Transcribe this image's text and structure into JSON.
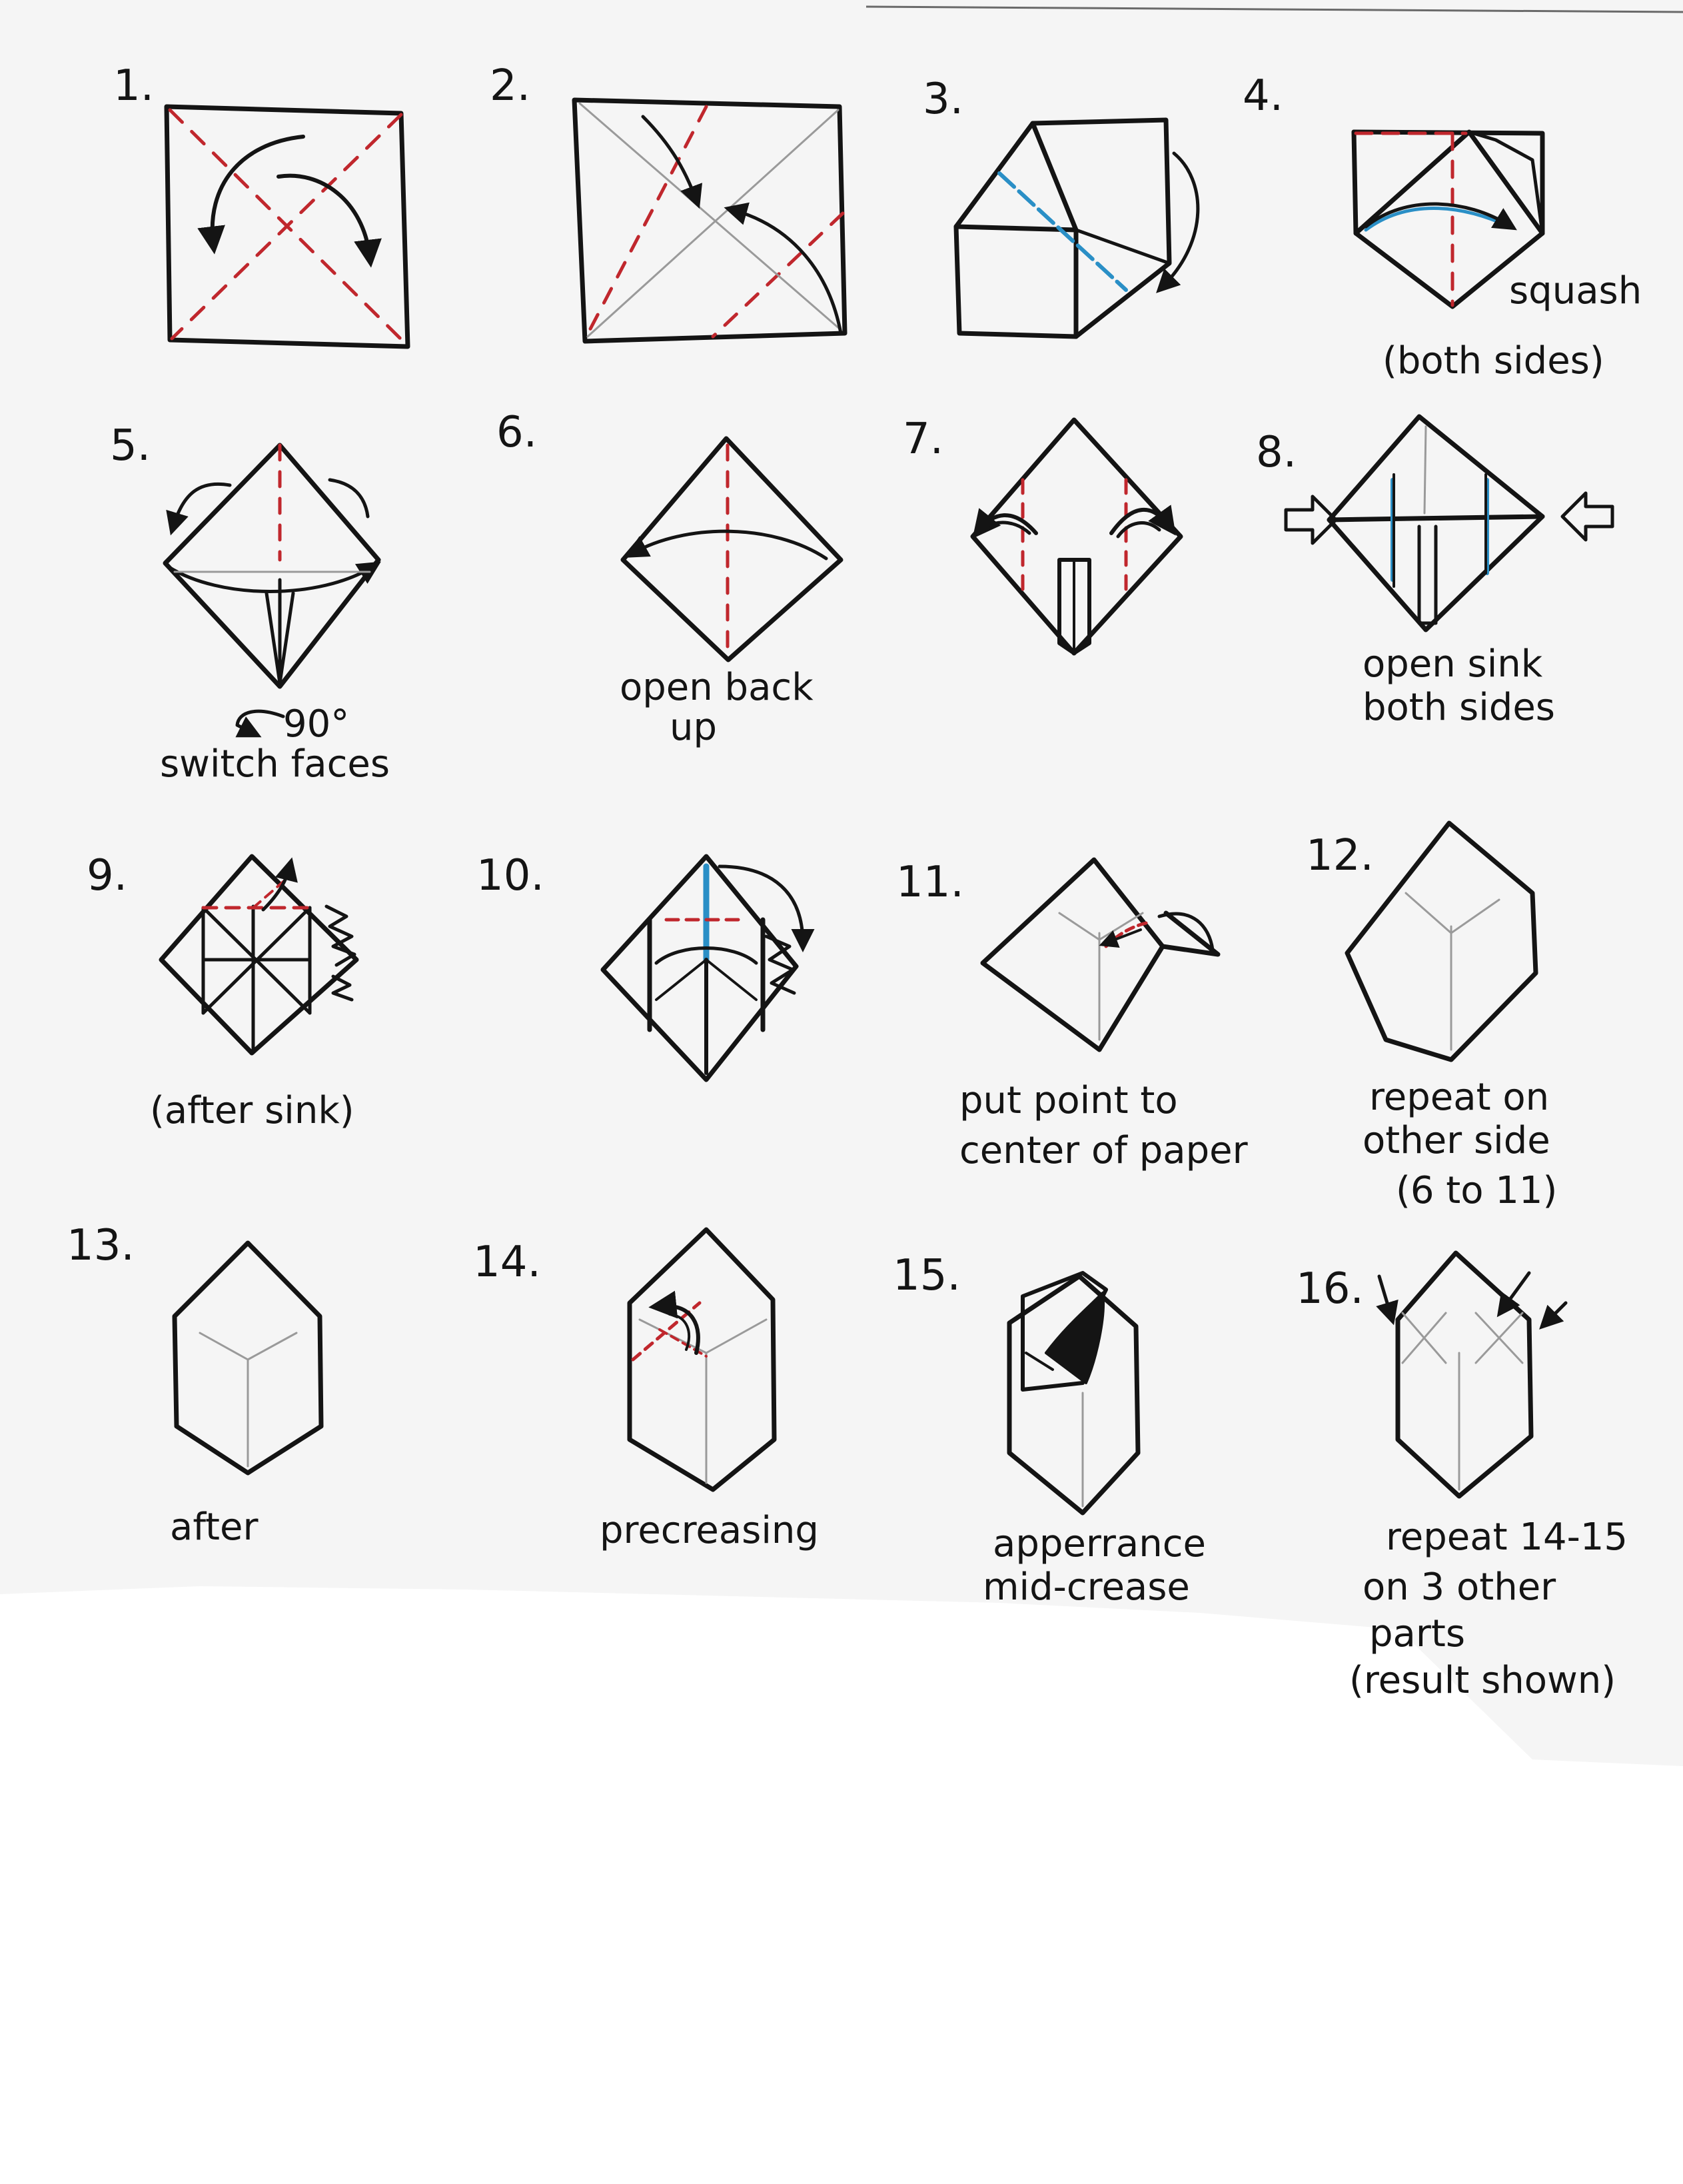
{
  "steps": [
    {
      "number": "1.",
      "caption": []
    },
    {
      "number": "2.",
      "caption": []
    },
    {
      "number": "3.",
      "caption": []
    },
    {
      "number": "4.",
      "caption": [
        "squash",
        "(both sides)"
      ]
    },
    {
      "number": "5.",
      "caption": [
        "90°",
        "switch faces"
      ]
    },
    {
      "number": "6.",
      "caption": [
        "open back",
        "up"
      ]
    },
    {
      "number": "7.",
      "caption": []
    },
    {
      "number": "8.",
      "caption": [
        "open sink",
        "both sides"
      ]
    },
    {
      "number": "9.",
      "caption": [
        "(after sink)"
      ]
    },
    {
      "number": "10.",
      "caption": []
    },
    {
      "number": "11.",
      "caption": [
        "put point to",
        "center of paper"
      ]
    },
    {
      "number": "12.",
      "caption": [
        "repeat on",
        "other side",
        "(6 to 11)"
      ]
    },
    {
      "number": "13.",
      "caption": [
        "after"
      ]
    },
    {
      "number": "14.",
      "caption": [
        "precreasing"
      ]
    },
    {
      "number": "15.",
      "caption": [
        "apperrance",
        "mid-crease"
      ]
    },
    {
      "number": "16.",
      "caption": [
        "repeat 14-15",
        "on 3 other",
        "parts",
        "(result shown)"
      ]
    }
  ],
  "colors": {
    "ink": "#141414",
    "valley_fold": "#c0272d",
    "mountain_fold": "#2a8fc6",
    "paper": "#f5f5f5",
    "background": "#ffffff",
    "crease": "#9a9a9a"
  }
}
